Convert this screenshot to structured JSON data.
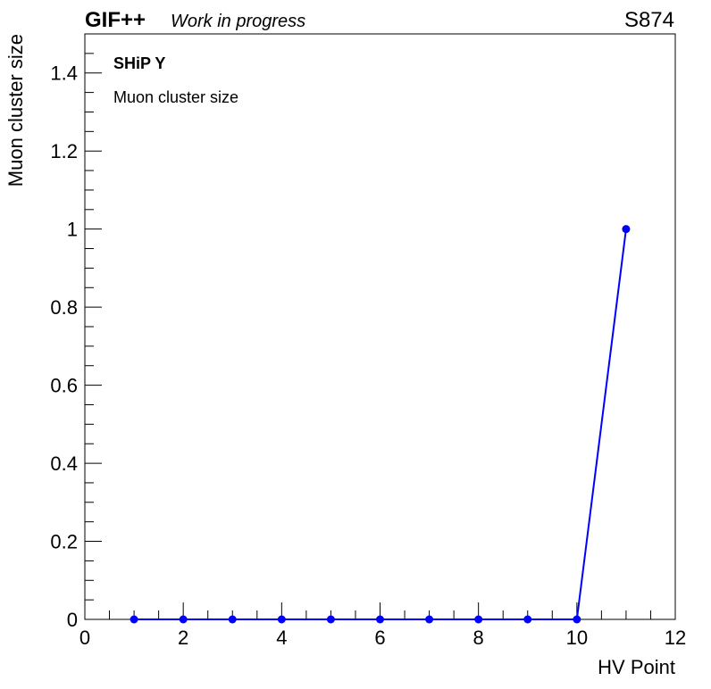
{
  "header": {
    "brand": "GIF++",
    "status": "Work in progress",
    "run": "S874"
  },
  "legend": {
    "chamber": "SHiP Y",
    "quantity": "Muon cluster size"
  },
  "colors": {
    "series": "#0000ff",
    "axis": "#000000",
    "background": "#ffffff"
  },
  "chart_data": {
    "type": "line",
    "title": "",
    "xlabel": "HV Point",
    "ylabel": "Muon cluster size",
    "xlim": [
      0,
      12
    ],
    "ylim": [
      0,
      1.5
    ],
    "x_major_ticks": [
      0,
      2,
      4,
      6,
      8,
      10,
      12
    ],
    "x_tick_labels": [
      "0",
      "2",
      "4",
      "6",
      "8",
      "10",
      "12"
    ],
    "y_major_ticks": [
      0,
      0.2,
      0.4,
      0.6,
      0.8,
      1,
      1.2,
      1.4
    ],
    "y_tick_labels": [
      "0",
      "0.2",
      "0.4",
      "0.6",
      "0.8",
      "1",
      "1.2",
      "1.4"
    ],
    "grid": false,
    "series": [
      {
        "x": [
          1,
          2,
          3,
          4,
          5,
          6,
          7,
          8,
          9,
          10,
          11
        ],
        "y": [
          0,
          0,
          0,
          0,
          0,
          0,
          0,
          0,
          0,
          0,
          1
        ],
        "color": "#0000ff",
        "marker": "circle"
      }
    ]
  }
}
